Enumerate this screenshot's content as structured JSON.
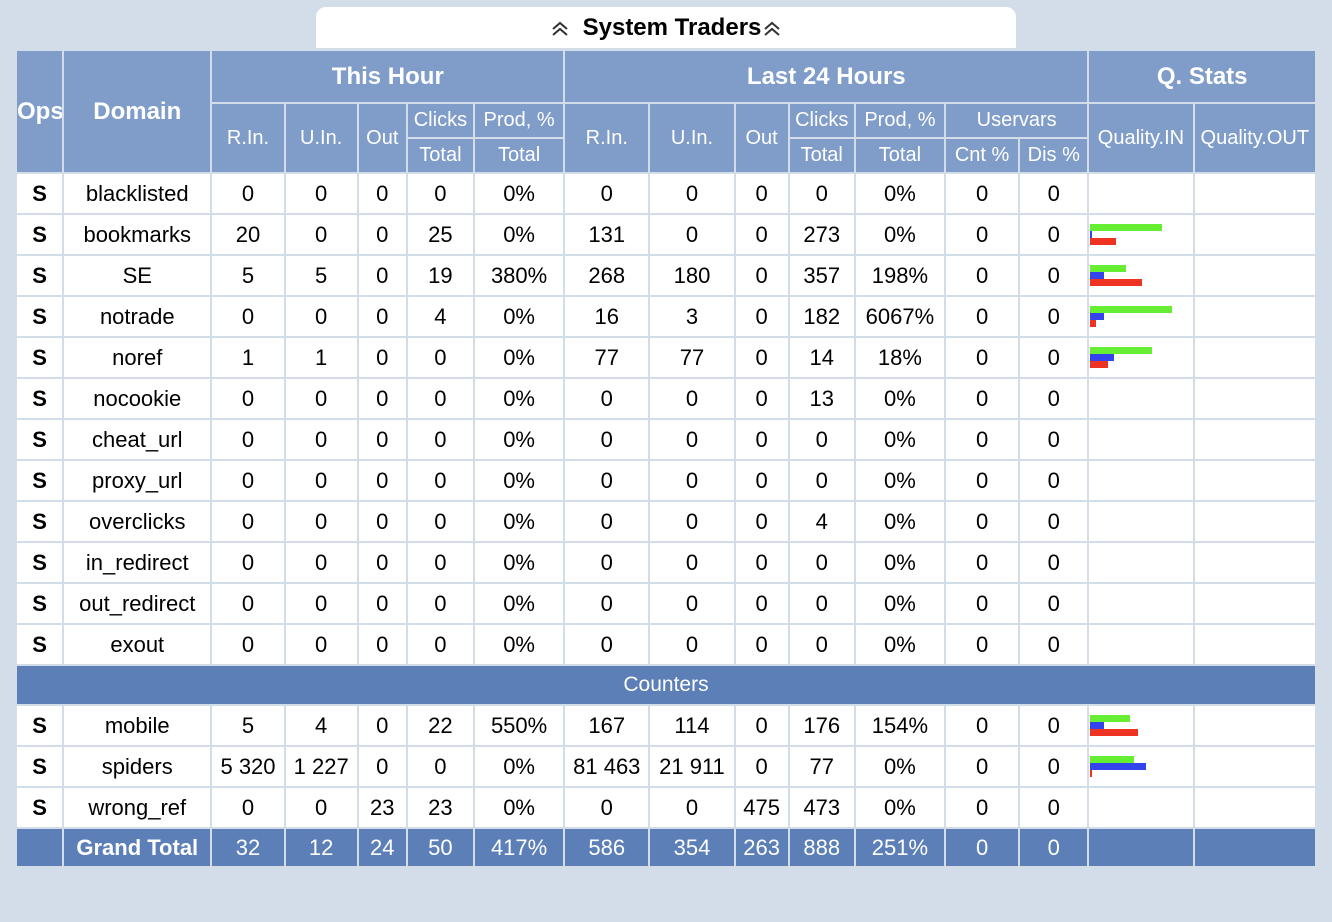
{
  "title": "System Traders",
  "icons": {
    "collapse": "double-chevron-up-icon",
    "expand": "double-chevron-up-icon"
  },
  "colors": {
    "header": "#7f9dc8",
    "section": "#5b7fb6",
    "bar_green": "#66ee33",
    "bar_blue": "#3344ee",
    "bar_red": "#ee3322"
  },
  "headers": {
    "ops": "Ops",
    "domain": "Domain",
    "this_hour": "This Hour",
    "last_24": "Last 24 Hours",
    "qstats": "Q. Stats",
    "rin": "R.In.",
    "uin": "U.In.",
    "out": "Out",
    "clicks": "Clicks",
    "prod": "Prod, %",
    "total": "Total",
    "uservars": "Uservars",
    "cnt": "Cnt %",
    "dis": "Dis %",
    "quality_in": "Quality.IN",
    "quality_out": "Quality.OUT"
  },
  "rows": [
    {
      "ops": "S",
      "domain": "blacklisted",
      "h": [
        "0",
        "0",
        "0",
        "0",
        "0%"
      ],
      "d": [
        "0",
        "0",
        "0",
        "0",
        "0%",
        "0",
        "0"
      ],
      "q": null
    },
    {
      "ops": "S",
      "domain": "bookmarks",
      "h": [
        "20",
        "0",
        "0",
        "25",
        "0%"
      ],
      "d": [
        "131",
        "0",
        "0",
        "273",
        "0%",
        "0",
        "0"
      ],
      "q": [
        0.72,
        0.02,
        0.26
      ]
    },
    {
      "ops": "S",
      "domain": "SE",
      "h": [
        "5",
        "5",
        "0",
        "19",
        "380%"
      ],
      "d": [
        "268",
        "180",
        "0",
        "357",
        "198%",
        "0",
        "0"
      ],
      "q": [
        0.36,
        0.14,
        0.52
      ]
    },
    {
      "ops": "S",
      "domain": "notrade",
      "h": [
        "0",
        "0",
        "0",
        "4",
        "0%"
      ],
      "d": [
        "16",
        "3",
        "0",
        "182",
        "6067%",
        "0",
        "0"
      ],
      "q": [
        0.82,
        0.14,
        0.06
      ]
    },
    {
      "ops": "S",
      "domain": "noref",
      "h": [
        "1",
        "1",
        "0",
        "0",
        "0%"
      ],
      "d": [
        "77",
        "77",
        "0",
        "14",
        "18%",
        "0",
        "0"
      ],
      "q": [
        0.62,
        0.24,
        0.18
      ]
    },
    {
      "ops": "S",
      "domain": "nocookie",
      "h": [
        "0",
        "0",
        "0",
        "0",
        "0%"
      ],
      "d": [
        "0",
        "0",
        "0",
        "13",
        "0%",
        "0",
        "0"
      ],
      "q": null
    },
    {
      "ops": "S",
      "domain": "cheat_url",
      "h": [
        "0",
        "0",
        "0",
        "0",
        "0%"
      ],
      "d": [
        "0",
        "0",
        "0",
        "0",
        "0%",
        "0",
        "0"
      ],
      "q": null
    },
    {
      "ops": "S",
      "domain": "proxy_url",
      "h": [
        "0",
        "0",
        "0",
        "0",
        "0%"
      ],
      "d": [
        "0",
        "0",
        "0",
        "0",
        "0%",
        "0",
        "0"
      ],
      "q": null
    },
    {
      "ops": "S",
      "domain": "overclicks",
      "h": [
        "0",
        "0",
        "0",
        "0",
        "0%"
      ],
      "d": [
        "0",
        "0",
        "0",
        "4",
        "0%",
        "0",
        "0"
      ],
      "q": null
    },
    {
      "ops": "S",
      "domain": "in_redirect",
      "h": [
        "0",
        "0",
        "0",
        "0",
        "0%"
      ],
      "d": [
        "0",
        "0",
        "0",
        "0",
        "0%",
        "0",
        "0"
      ],
      "q": null
    },
    {
      "ops": "S",
      "domain": "out_redirect",
      "h": [
        "0",
        "0",
        "0",
        "0",
        "0%"
      ],
      "d": [
        "0",
        "0",
        "0",
        "0",
        "0%",
        "0",
        "0"
      ],
      "q": null
    },
    {
      "ops": "S",
      "domain": "exout",
      "h": [
        "0",
        "0",
        "0",
        "0",
        "0%"
      ],
      "d": [
        "0",
        "0",
        "0",
        "0",
        "0%",
        "0",
        "0"
      ],
      "q": null
    }
  ],
  "section_label": "Counters",
  "counter_rows": [
    {
      "ops": "S",
      "domain": "mobile",
      "h": [
        "5",
        "4",
        "0",
        "22",
        "550%"
      ],
      "d": [
        "167",
        "114",
        "0",
        "176",
        "154%",
        "0",
        "0"
      ],
      "q": [
        0.4,
        0.14,
        0.48
      ]
    },
    {
      "ops": "S",
      "domain": "spiders",
      "h": [
        "5 320",
        "1 227",
        "0",
        "0",
        "0%"
      ],
      "d": [
        "81 463",
        "21 911",
        "0",
        "77",
        "0%",
        "0",
        "0"
      ],
      "q": [
        0.44,
        0.56,
        0.02
      ]
    },
    {
      "ops": "S",
      "domain": "wrong_ref",
      "h": [
        "0",
        "0",
        "23",
        "23",
        "0%"
      ],
      "d": [
        "0",
        "0",
        "475",
        "473",
        "0%",
        "0",
        "0"
      ],
      "q": null
    }
  ],
  "grand_total": {
    "label": "Grand Total",
    "h": [
      "32",
      "12",
      "24",
      "50",
      "417%"
    ],
    "d": [
      "586",
      "354",
      "263",
      "888",
      "251%",
      "0",
      "0"
    ]
  }
}
